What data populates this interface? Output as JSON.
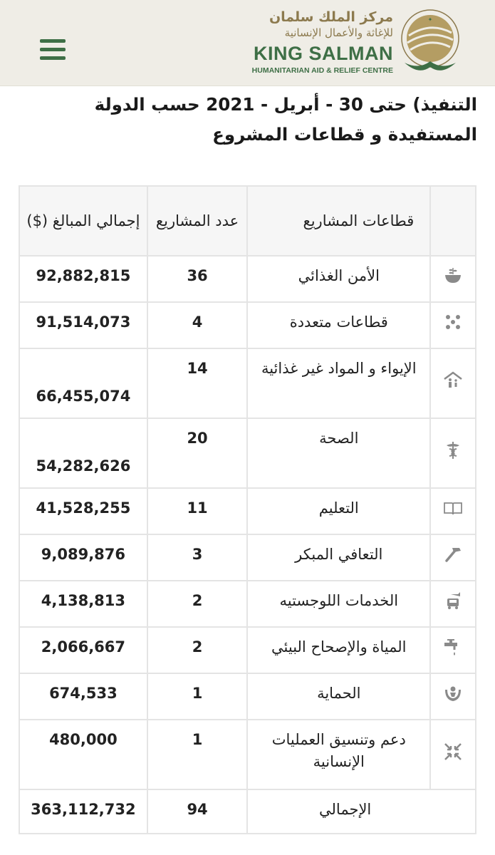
{
  "header": {
    "logo_ar_line1": "مركز الملك سلمان",
    "logo_ar_line2": "للإغاثة والأعمال الإنسانية",
    "logo_en_line1": "KING SALMAN",
    "logo_en_line2": "HUMANITARIAN AID & RELIEF CENTRE",
    "menu_icon": "hamburger-menu-icon",
    "brand_green": "#3e6f46",
    "brand_gold": "#8c7a4e"
  },
  "title": {
    "line1": "التنفيذ) حتى 30 - أبريل - 2021 حسب الدولة",
    "line2": "المستفيدة و قطاعات المشروع"
  },
  "table": {
    "headers": {
      "sector": "قطاعات المشاريع",
      "count": "عدد المشاريع",
      "amount": "إجمالي المبالغ ($)"
    },
    "rows": [
      {
        "icon": "food-bowl-icon",
        "sector": "الأمن الغذائي",
        "count": "36",
        "amount": "92,882,815"
      },
      {
        "icon": "dots-icon",
        "sector": "قطاعات متعددة",
        "count": "4",
        "amount": "91,514,073"
      },
      {
        "icon": "shelter-family-icon",
        "sector": "الإيواء و المواد غير غذائية",
        "count": "14",
        "amount": "66,455,074"
      },
      {
        "icon": "caduceus-icon",
        "sector": "الصحة",
        "count": "20",
        "amount": "54,282,626"
      },
      {
        "icon": "book-icon",
        "sector": "التعليم",
        "count": "11",
        "amount": "41,528,255"
      },
      {
        "icon": "hammer-icon",
        "sector": "التعافي المبكر",
        "count": "3",
        "amount": "9,089,876"
      },
      {
        "icon": "truck-plane-icon",
        "sector": "الخدمات اللوجستيه",
        "count": "2",
        "amount": "4,138,813"
      },
      {
        "icon": "water-tap-icon",
        "sector": "المياة والإصحاح البيئي",
        "count": "2",
        "amount": "2,066,667"
      },
      {
        "icon": "protection-hands-icon",
        "sector": "الحماية",
        "count": "1",
        "amount": "674,533"
      },
      {
        "icon": "coordination-arrows-icon",
        "sector": "دعم وتنسيق العمليات الإنسانية",
        "count": "1",
        "amount": "480,000"
      }
    ],
    "total": {
      "label": "الإجمالي",
      "count": "94",
      "amount": "363,112,732"
    }
  }
}
